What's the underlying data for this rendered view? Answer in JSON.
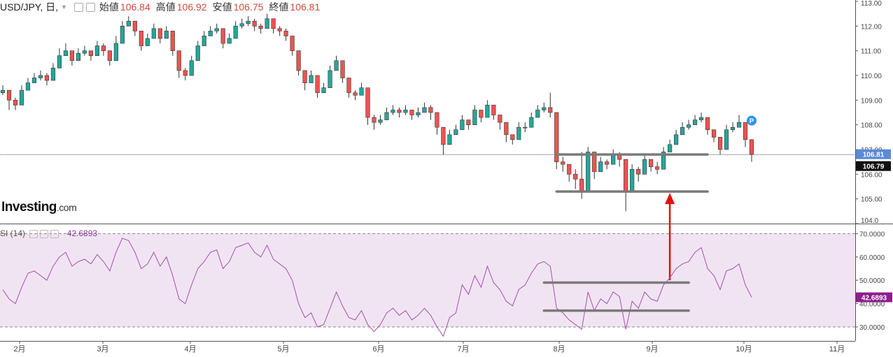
{
  "header": {
    "symbol": "USD/JPY, 日,",
    "open_label": "始値",
    "open_value": "106.84",
    "high_label": "高値",
    "high_value": "106.92",
    "low_label": "安値",
    "low_value": "106.75",
    "close_label": "終値",
    "close_value": "106.81"
  },
  "logo": {
    "main": "Investing",
    "suffix": ".com"
  },
  "rsi_header": {
    "label": "SI (14)",
    "value": "42.6893"
  },
  "chart_data": [
    {
      "type": "candlestick",
      "title": "USD/JPY, 日,",
      "ylim": [
        104.0,
        113.0
      ],
      "y_ticks": [
        "104.0",
        "105.00",
        "106.00",
        "107.00",
        "108.00",
        "109.00",
        "110.00",
        "111.00",
        "112.00",
        "113.00"
      ],
      "x_ticks": [
        "2月",
        "3月",
        "4月",
        "5月",
        "6月",
        "7月",
        "8月",
        "9月",
        "10月",
        "11月"
      ],
      "current_price_label": "106.81",
      "last_price_label": "106.79",
      "up_color": "#26a69a",
      "down_color": "#ef5350",
      "close_series": [
        109.4,
        109.0,
        108.8,
        109.4,
        109.7,
        109.9,
        110.0,
        109.8,
        110.3,
        110.8,
        111.0,
        110.6,
        110.9,
        111.0,
        110.8,
        111.2,
        111.0,
        110.6,
        111.3,
        112.0,
        112.2,
        111.8,
        111.2,
        111.5,
        111.9,
        111.5,
        111.8,
        111.0,
        110.2,
        110.0,
        110.6,
        111.2,
        111.6,
        111.8,
        111.9,
        111.3,
        111.5,
        112.0,
        112.1,
        112.2,
        112.0,
        111.9,
        112.3,
        111.9,
        111.8,
        111.6,
        111.0,
        110.2,
        109.7,
        110.0,
        109.3,
        109.5,
        110.2,
        110.6,
        109.9,
        109.3,
        109.2,
        109.5,
        108.3,
        108.1,
        108.2,
        108.5,
        108.6,
        108.5,
        108.6,
        108.4,
        108.5,
        108.7,
        108.5,
        107.9,
        107.2,
        107.6,
        107.8,
        108.2,
        108.0,
        108.6,
        108.3,
        108.8,
        108.4,
        108.1,
        107.6,
        107.4,
        107.9,
        107.9,
        108.3,
        108.6,
        108.7,
        108.5,
        106.5,
        106.4,
        106.0,
        105.8,
        105.3,
        106.9,
        106.1,
        106.5,
        106.4,
        106.8,
        106.6,
        105.3,
        106.2,
        106.0,
        106.6,
        106.3,
        106.2,
        106.9,
        107.2,
        107.6,
        107.9,
        108.0,
        108.2,
        108.3,
        107.8,
        107.5,
        107.0,
        107.8,
        107.9,
        108.1,
        107.4,
        106.8
      ],
      "high_series": [
        109.6,
        109.3,
        109.1,
        109.6,
        109.9,
        110.1,
        110.2,
        110.1,
        110.5,
        111.1,
        111.3,
        110.9,
        111.1,
        111.2,
        111.0,
        111.4,
        111.3,
        111.0,
        111.6,
        112.2,
        112.4,
        112.1,
        111.5,
        111.7,
        112.1,
        111.8,
        112.0,
        111.3,
        110.6,
        110.3,
        110.8,
        111.4,
        111.8,
        112.0,
        112.1,
        111.6,
        111.7,
        112.2,
        112.3,
        112.4,
        112.3,
        112.1,
        112.5,
        112.2,
        112.0,
        111.9,
        111.3,
        110.6,
        110.0,
        110.2,
        109.6,
        109.7,
        110.4,
        110.8,
        110.3,
        109.6,
        109.4,
        109.7,
        108.7,
        108.4,
        108.4,
        108.7,
        108.8,
        108.7,
        108.8,
        108.6,
        108.7,
        108.9,
        108.8,
        108.2,
        107.5,
        107.8,
        108.0,
        108.4,
        108.2,
        108.8,
        108.6,
        109.0,
        108.7,
        108.4,
        107.9,
        107.6,
        108.1,
        108.1,
        108.5,
        108.8,
        108.9,
        109.3,
        107.0,
        106.7,
        106.3,
        106.2,
        106.9,
        107.1,
        106.4,
        106.7,
        106.6,
        107.0,
        106.9,
        106.0,
        106.4,
        106.3,
        106.8,
        106.6,
        106.5,
        107.1,
        107.4,
        107.8,
        108.1,
        108.2,
        108.4,
        108.5,
        108.1,
        107.8,
        107.3,
        108.0,
        108.1,
        108.4,
        107.8,
        107.0
      ],
      "low_series": [
        109.2,
        108.6,
        108.6,
        109.1,
        109.5,
        109.7,
        109.8,
        109.6,
        110.1,
        110.6,
        110.8,
        110.4,
        110.7,
        110.8,
        110.6,
        111.0,
        110.8,
        110.4,
        111.1,
        111.8,
        112.0,
        111.6,
        111.0,
        111.3,
        111.7,
        111.3,
        111.6,
        110.8,
        109.9,
        109.8,
        110.4,
        111.0,
        111.4,
        111.6,
        111.7,
        111.1,
        111.3,
        111.8,
        111.9,
        112.0,
        111.8,
        111.7,
        112.1,
        111.7,
        111.6,
        111.4,
        110.8,
        110.0,
        109.4,
        109.8,
        109.1,
        109.3,
        110.0,
        110.4,
        109.7,
        109.1,
        109.0,
        109.3,
        108.0,
        107.8,
        108.0,
        108.3,
        108.4,
        108.3,
        108.4,
        108.2,
        108.3,
        108.5,
        108.2,
        107.6,
        106.8,
        107.4,
        107.6,
        108.0,
        107.8,
        108.4,
        108.1,
        108.6,
        108.2,
        107.8,
        107.3,
        107.2,
        107.7,
        107.7,
        108.1,
        108.4,
        108.5,
        108.3,
        106.2,
        106.1,
        105.7,
        105.4,
        105.0,
        106.5,
        105.8,
        106.3,
        106.2,
        106.6,
        106.3,
        104.5,
        105.9,
        105.7,
        106.4,
        106.1,
        106.0,
        106.7,
        107.0,
        107.4,
        107.7,
        107.8,
        108.0,
        108.1,
        107.6,
        107.3,
        106.8,
        107.6,
        107.7,
        107.9,
        107.1,
        106.5
      ],
      "annotations": [
        {
          "type": "hline",
          "value": 106.8,
          "from": 88,
          "to": 112
        },
        {
          "type": "hline",
          "value": 105.3,
          "from": 88,
          "to": 112
        },
        {
          "type": "arrow",
          "x": 106,
          "from": 50.0,
          "to": 105.3
        },
        {
          "type": "marker",
          "text": "P",
          "x": 119,
          "value": 108.0
        }
      ]
    },
    {
      "type": "line",
      "title": "SI (14)",
      "ylim": [
        24.0,
        74.0
      ],
      "y_ticks": [
        "30.0000",
        "40.0000",
        "50.0000",
        "60.0000",
        "70.0000"
      ],
      "bands": [
        30.0,
        70.0
      ],
      "band_color": "#f1e4f2",
      "line_color": "#a24fb0",
      "last_value_label": "42.6893",
      "values": [
        46.0,
        42.0,
        40.0,
        47.0,
        53.0,
        54.0,
        52.0,
        50.0,
        56.0,
        60.0,
        62.0,
        56.0,
        58.0,
        59.0,
        57.0,
        61.0,
        58.0,
        54.0,
        62.0,
        68.0,
        67.0,
        62.0,
        55.0,
        57.0,
        62.0,
        56.0,
        60.0,
        52.0,
        42.0,
        40.0,
        48.0,
        55.0,
        58.0,
        62.0,
        63.0,
        55.0,
        58.0,
        64.0,
        65.0,
        66.0,
        62.0,
        60.0,
        65.0,
        59.0,
        57.0,
        55.0,
        50.0,
        40.0,
        34.0,
        36.0,
        30.0,
        31.0,
        38.0,
        45.0,
        39.0,
        34.0,
        33.0,
        37.0,
        31.0,
        28.0,
        31.0,
        36.0,
        38.0,
        35.0,
        37.0,
        33.0,
        35.0,
        38.0,
        35.0,
        30.0,
        26.0,
        34.0,
        36.0,
        48.0,
        44.0,
        52.0,
        47.0,
        56.0,
        49.0,
        46.0,
        41.0,
        39.0,
        46.0,
        48.0,
        53.0,
        57.0,
        58.0,
        56.0,
        38.0,
        36.0,
        33.0,
        31.0,
        29.0,
        45.0,
        37.0,
        42.0,
        40.0,
        45.0,
        43.0,
        29.0,
        41.0,
        38.0,
        45.0,
        42.0,
        41.0,
        48.0,
        51.0,
        55.0,
        57.0,
        58.0,
        62.0,
        64.0,
        55.0,
        52.0,
        46.0,
        54.0,
        55.0,
        57.0,
        48.0,
        42.7
      ],
      "annotations": [
        {
          "type": "hline",
          "value": 49.0,
          "from": 86,
          "to": 109
        },
        {
          "type": "hline",
          "value": 37.0,
          "from": 86,
          "to": 109
        }
      ]
    }
  ]
}
